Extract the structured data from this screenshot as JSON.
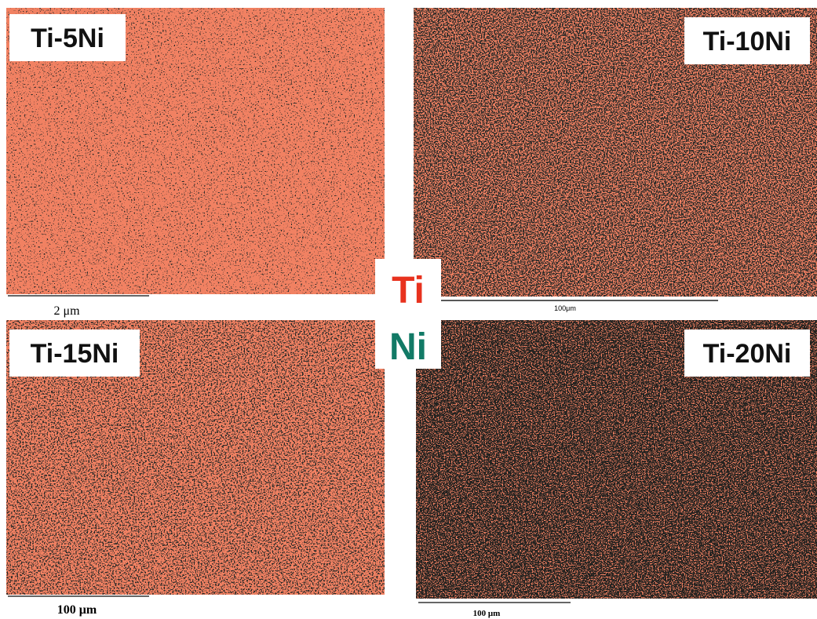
{
  "panels": [
    {
      "label": "Ti-5Ni",
      "scale": "2 μm"
    },
    {
      "label": "Ti-10Ni",
      "scale": "100μm"
    },
    {
      "label": "Ti-15Ni",
      "scale": "100 μm"
    },
    {
      "label": "Ti-20Ni",
      "scale": "100 μm"
    }
  ],
  "legend": {
    "ti": "Ti",
    "ni": "Ni"
  }
}
